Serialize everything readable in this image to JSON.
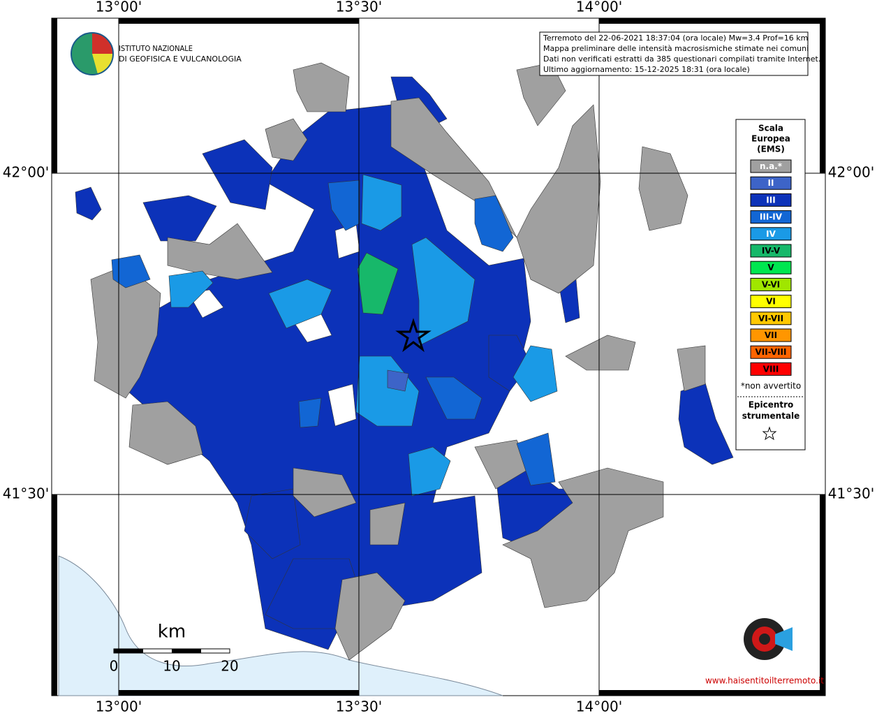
{
  "header": {
    "logo_line1": "ISTITUTO NAZIONALE",
    "logo_line2": "DI GEOFISICA E VULCANOLOGIA"
  },
  "info": [
    "Terremoto del 22-06-2021 18:37:04 (ora locale) Mw=3.4 Prof=16 km",
    "Mappa preliminare delle intensità macrosismiche stimate nei comuni",
    "Dati non verificati estratti da 385 questionari compilati tramite Internet.",
    "Ultimo aggiornamento: 15-12-2025 18:31 (ora locale)"
  ],
  "axes": {
    "lon_labels": [
      "13°00'",
      "13°30'",
      "14°00'"
    ],
    "lat_labels": [
      "42°00'",
      "41°30'"
    ]
  },
  "legend": {
    "title_lines": [
      "Scala",
      "Europea",
      "(EMS)"
    ],
    "items": [
      {
        "label": "n.a.*",
        "color": "#a0a0a0"
      },
      {
        "label": "II",
        "color": "#3d64c8"
      },
      {
        "label": "III",
        "color": "#0c32b9"
      },
      {
        "label": "III-IV",
        "color": "#1266d4"
      },
      {
        "label": "IV",
        "color": "#1a9ae6"
      },
      {
        "label": "IV-V",
        "color": "#17b86a"
      },
      {
        "label": "V",
        "color": "#00e650"
      },
      {
        "label": "V-VI",
        "color": "#a0e600"
      },
      {
        "label": "VI",
        "color": "#ffff00"
      },
      {
        "label": "VI-VII",
        "color": "#ffc800"
      },
      {
        "label": "VII",
        "color": "#ff9600"
      },
      {
        "label": "VII-VIII",
        "color": "#ff6400"
      },
      {
        "label": "VIII",
        "color": "#ff0000"
      }
    ],
    "note": "*non avvertito",
    "epicenter_lines": [
      "Epicentro",
      "strumentale"
    ]
  },
  "scale_bar": {
    "unit": "km",
    "labels": [
      "0",
      "10",
      "20"
    ]
  },
  "footer_logo": "www.haisentitoilterremoto.it"
}
